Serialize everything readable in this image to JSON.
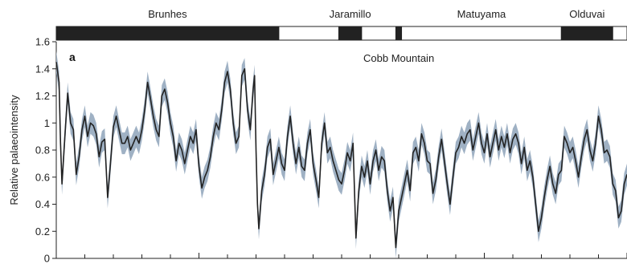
{
  "chart_data": {
    "type": "line",
    "panel_label": "a",
    "ylabel": "Relative palaeointensity",
    "ylim": [
      0,
      1.6
    ],
    "yticks": [
      "0",
      "0.2",
      "0.4",
      "0.6",
      "0.8",
      "1",
      "1.2",
      "1.4",
      "1.6"
    ],
    "annotations": [
      {
        "text": "Cobb Mountain"
      }
    ],
    "chrons": [
      {
        "name": "Brunhes",
        "polarity": "normal",
        "start": 0.0,
        "end": 0.78
      },
      {
        "name": "",
        "polarity": "reversed",
        "start": 0.78,
        "end": 0.99
      },
      {
        "name": "Jaramillo",
        "polarity": "normal",
        "start": 0.99,
        "end": 1.07
      },
      {
        "name": "",
        "polarity": "reversed",
        "start": 1.07,
        "end": 1.19
      },
      {
        "name": "",
        "polarity": "normal",
        "start": 1.19,
        "end": 1.21
      },
      {
        "name": "Matuyama",
        "polarity": "reversed",
        "start": 1.21,
        "end": 1.77
      },
      {
        "name": "Olduvai",
        "polarity": "normal",
        "start": 1.77,
        "end": 1.95
      },
      {
        "name": "",
        "polarity": "reversed",
        "start": 1.95,
        "end": 2.0
      }
    ],
    "xlim": [
      0,
      2.0
    ],
    "uncertainty_band": 0.08,
    "colors": {
      "line": "#222222",
      "band": "#9fb1c4",
      "normal": "#222222",
      "reversed": "#ffffff"
    },
    "series": [
      {
        "values": [
          [
            0.0,
            1.45
          ],
          [
            0.01,
            1.3
          ],
          [
            0.015,
            0.85
          ],
          [
            0.02,
            0.55
          ],
          [
            0.03,
            0.9
          ],
          [
            0.04,
            1.22
          ],
          [
            0.05,
            1.0
          ],
          [
            0.06,
            0.95
          ],
          [
            0.07,
            0.62
          ],
          [
            0.08,
            0.75
          ],
          [
            0.09,
            0.95
          ],
          [
            0.1,
            1.05
          ],
          [
            0.11,
            0.9
          ],
          [
            0.12,
            1.0
          ],
          [
            0.13,
            0.98
          ],
          [
            0.14,
            0.92
          ],
          [
            0.15,
            0.75
          ],
          [
            0.16,
            0.86
          ],
          [
            0.17,
            0.88
          ],
          [
            0.18,
            0.45
          ],
          [
            0.19,
            0.7
          ],
          [
            0.2,
            0.97
          ],
          [
            0.21,
            1.05
          ],
          [
            0.22,
            0.95
          ],
          [
            0.23,
            0.85
          ],
          [
            0.24,
            0.85
          ],
          [
            0.25,
            0.9
          ],
          [
            0.26,
            0.8
          ],
          [
            0.27,
            0.85
          ],
          [
            0.28,
            0.9
          ],
          [
            0.29,
            0.85
          ],
          [
            0.3,
            0.95
          ],
          [
            0.31,
            1.1
          ],
          [
            0.32,
            1.3
          ],
          [
            0.33,
            1.18
          ],
          [
            0.34,
            1.05
          ],
          [
            0.35,
            0.95
          ],
          [
            0.36,
            0.9
          ],
          [
            0.37,
            1.2
          ],
          [
            0.38,
            1.25
          ],
          [
            0.39,
            1.15
          ],
          [
            0.4,
            1.0
          ],
          [
            0.41,
            0.9
          ],
          [
            0.42,
            0.72
          ],
          [
            0.43,
            0.85
          ],
          [
            0.44,
            0.8
          ],
          [
            0.45,
            0.7
          ],
          [
            0.46,
            0.8
          ],
          [
            0.47,
            0.9
          ],
          [
            0.48,
            0.85
          ],
          [
            0.49,
            0.95
          ],
          [
            0.5,
            0.68
          ],
          [
            0.51,
            0.52
          ],
          [
            0.52,
            0.6
          ],
          [
            0.53,
            0.65
          ],
          [
            0.54,
            0.75
          ],
          [
            0.55,
            0.9
          ],
          [
            0.56,
            1.0
          ],
          [
            0.57,
            0.95
          ],
          [
            0.58,
            1.1
          ],
          [
            0.59,
            1.3
          ],
          [
            0.6,
            1.38
          ],
          [
            0.61,
            1.25
          ],
          [
            0.62,
            1.0
          ],
          [
            0.63,
            0.85
          ],
          [
            0.64,
            0.9
          ],
          [
            0.65,
            1.35
          ],
          [
            0.66,
            1.4
          ],
          [
            0.67,
            1.1
          ],
          [
            0.68,
            0.95
          ],
          [
            0.69,
            1.25
          ],
          [
            0.695,
            1.35
          ],
          [
            0.7,
            0.8
          ],
          [
            0.705,
            0.4
          ],
          [
            0.71,
            0.22
          ],
          [
            0.72,
            0.5
          ],
          [
            0.73,
            0.62
          ],
          [
            0.74,
            0.82
          ],
          [
            0.75,
            0.88
          ],
          [
            0.76,
            0.62
          ],
          [
            0.77,
            0.72
          ],
          [
            0.78,
            0.82
          ],
          [
            0.79,
            0.7
          ],
          [
            0.8,
            0.65
          ],
          [
            0.81,
            0.9
          ],
          [
            0.82,
            1.05
          ],
          [
            0.83,
            0.85
          ],
          [
            0.84,
            0.7
          ],
          [
            0.85,
            0.82
          ],
          [
            0.86,
            0.68
          ],
          [
            0.87,
            0.65
          ],
          [
            0.88,
            0.85
          ],
          [
            0.89,
            0.95
          ],
          [
            0.9,
            0.7
          ],
          [
            0.91,
            0.58
          ],
          [
            0.92,
            0.45
          ],
          [
            0.93,
            0.85
          ],
          [
            0.94,
            1.0
          ],
          [
            0.95,
            0.78
          ],
          [
            0.96,
            0.82
          ],
          [
            0.97,
            0.72
          ],
          [
            0.98,
            0.65
          ],
          [
            0.99,
            0.58
          ],
          [
            1.0,
            0.55
          ],
          [
            1.01,
            0.65
          ],
          [
            1.02,
            0.78
          ],
          [
            1.03,
            0.72
          ],
          [
            1.04,
            0.85
          ],
          [
            1.05,
            0.15
          ],
          [
            1.06,
            0.5
          ],
          [
            1.07,
            0.68
          ],
          [
            1.08,
            0.6
          ],
          [
            1.09,
            0.72
          ],
          [
            1.1,
            0.55
          ],
          [
            1.11,
            0.72
          ],
          [
            1.12,
            0.8
          ],
          [
            1.13,
            0.65
          ],
          [
            1.14,
            0.75
          ],
          [
            1.15,
            0.72
          ],
          [
            1.16,
            0.5
          ],
          [
            1.17,
            0.35
          ],
          [
            1.18,
            0.45
          ],
          [
            1.19,
            0.08
          ],
          [
            1.2,
            0.35
          ],
          [
            1.21,
            0.45
          ],
          [
            1.22,
            0.55
          ],
          [
            1.23,
            0.65
          ],
          [
            1.24,
            0.5
          ],
          [
            1.25,
            0.78
          ],
          [
            1.26,
            0.82
          ],
          [
            1.27,
            0.72
          ],
          [
            1.28,
            0.92
          ],
          [
            1.29,
            0.85
          ],
          [
            1.3,
            0.72
          ],
          [
            1.31,
            0.7
          ],
          [
            1.32,
            0.48
          ],
          [
            1.33,
            0.58
          ],
          [
            1.34,
            0.75
          ],
          [
            1.35,
            0.88
          ],
          [
            1.36,
            0.72
          ],
          [
            1.37,
            0.55
          ],
          [
            1.38,
            0.4
          ],
          [
            1.39,
            0.6
          ],
          [
            1.4,
            0.78
          ],
          [
            1.41,
            0.82
          ],
          [
            1.42,
            0.9
          ],
          [
            1.43,
            0.85
          ],
          [
            1.44,
            0.92
          ],
          [
            1.45,
            0.95
          ],
          [
            1.46,
            0.8
          ],
          [
            1.47,
            0.9
          ],
          [
            1.48,
            1.0
          ],
          [
            1.49,
            0.85
          ],
          [
            1.5,
            0.78
          ],
          [
            1.51,
            0.92
          ],
          [
            1.52,
            0.75
          ],
          [
            1.53,
            0.85
          ],
          [
            1.54,
            0.95
          ],
          [
            1.55,
            0.8
          ],
          [
            1.56,
            0.9
          ],
          [
            1.57,
            0.82
          ],
          [
            1.58,
            0.92
          ],
          [
            1.59,
            0.78
          ],
          [
            1.6,
            0.88
          ],
          [
            1.61,
            0.92
          ],
          [
            1.62,
            0.85
          ],
          [
            1.63,
            0.7
          ],
          [
            1.64,
            0.82
          ],
          [
            1.65,
            0.65
          ],
          [
            1.66,
            0.72
          ],
          [
            1.67,
            0.6
          ],
          [
            1.68,
            0.4
          ],
          [
            1.69,
            0.2
          ],
          [
            1.7,
            0.3
          ],
          [
            1.71,
            0.45
          ],
          [
            1.72,
            0.58
          ],
          [
            1.73,
            0.68
          ],
          [
            1.74,
            0.55
          ],
          [
            1.75,
            0.48
          ],
          [
            1.76,
            0.62
          ],
          [
            1.77,
            0.65
          ],
          [
            1.78,
            0.9
          ],
          [
            1.79,
            0.85
          ],
          [
            1.8,
            0.78
          ],
          [
            1.81,
            0.82
          ],
          [
            1.82,
            0.72
          ],
          [
            1.83,
            0.6
          ],
          [
            1.84,
            0.75
          ],
          [
            1.85,
            0.88
          ],
          [
            1.86,
            0.95
          ],
          [
            1.87,
            0.8
          ],
          [
            1.88,
            0.72
          ],
          [
            1.89,
            0.85
          ],
          [
            1.9,
            1.05
          ],
          [
            1.91,
            0.95
          ],
          [
            1.92,
            0.78
          ],
          [
            1.93,
            0.8
          ],
          [
            1.94,
            0.75
          ],
          [
            1.95,
            0.55
          ],
          [
            1.96,
            0.5
          ],
          [
            1.97,
            0.3
          ],
          [
            1.98,
            0.35
          ],
          [
            1.99,
            0.55
          ],
          [
            2.0,
            0.62
          ]
        ]
      }
    ]
  }
}
